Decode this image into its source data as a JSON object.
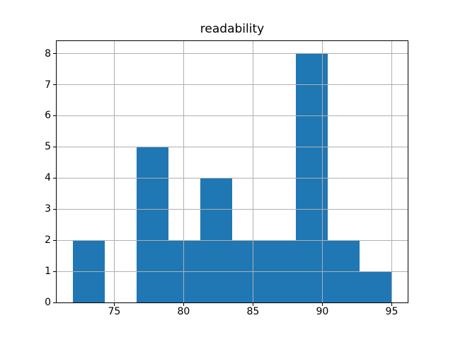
{
  "title": "readability",
  "colors": {
    "bar": "#1f77b4",
    "grid": "#b0b0b0",
    "spine": "#000000",
    "text": "#000000",
    "background": "#ffffff"
  },
  "chart_data": {
    "type": "bar",
    "subtype": "histogram",
    "title": "readability",
    "xlabel": "",
    "ylabel": "",
    "bin_edges": [
      72.0,
      74.3,
      76.6,
      78.9,
      81.2,
      83.5,
      85.8,
      88.1,
      90.4,
      92.7,
      95.0
    ],
    "counts": [
      2,
      0,
      5,
      2,
      4,
      2,
      2,
      8,
      2,
      1
    ],
    "x_ticks": [
      75,
      80,
      85,
      90,
      95
    ],
    "y_ticks": [
      0,
      1,
      2,
      3,
      4,
      5,
      6,
      7,
      8
    ],
    "xlim": [
      70.85,
      96.15
    ],
    "ylim": [
      0,
      8.4
    ],
    "grid": true,
    "grid_above_bars": true,
    "legend": null,
    "bar_color": "#1f77b4",
    "grid_color": "#b0b0b0"
  }
}
